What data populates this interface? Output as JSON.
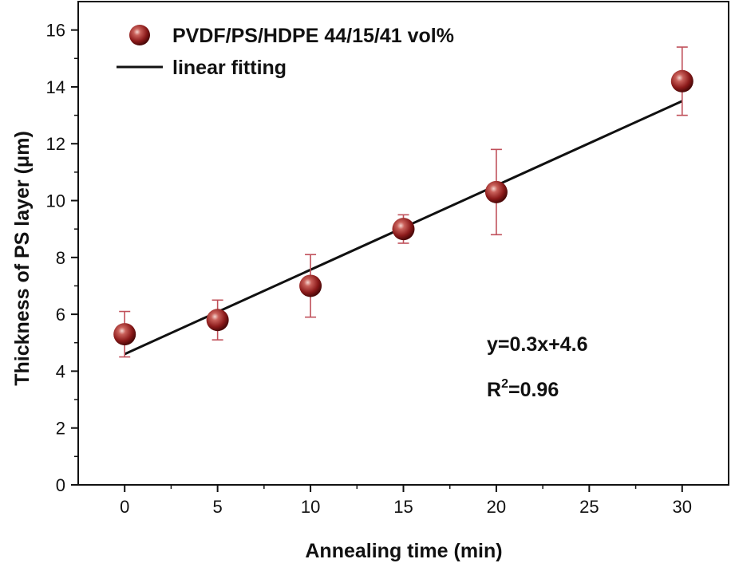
{
  "chart_data": {
    "type": "scatter",
    "xlabel": "Annealing time (min)",
    "ylabel": "Thickness of PS layer (μm)",
    "xlim": [
      -2.5,
      32.5
    ],
    "ylim": [
      0,
      17
    ],
    "x_ticks": [
      0,
      5,
      10,
      15,
      20,
      25,
      30
    ],
    "y_ticks": [
      0,
      2,
      4,
      6,
      8,
      10,
      12,
      14,
      16
    ],
    "grid": false,
    "legend_position": "top-left",
    "series": [
      {
        "name": "PVDF/PS/HDPE 44/15/41 vol%",
        "kind": "scatter-with-error",
        "color": "#8b1a1a",
        "error_color": "#c0505a",
        "x": [
          0,
          5,
          10,
          15,
          20,
          30
        ],
        "y": [
          5.3,
          5.8,
          7.0,
          9.0,
          10.3,
          14.2
        ],
        "y_err_low": [
          4.5,
          5.1,
          5.9,
          8.5,
          8.8,
          13.0
        ],
        "y_err_high": [
          6.1,
          6.5,
          8.1,
          9.5,
          11.8,
          15.4
        ]
      },
      {
        "name": "linear fitting",
        "kind": "line",
        "color": "#111111",
        "x": [
          0,
          30
        ],
        "y": [
          4.6,
          13.5
        ]
      }
    ],
    "annotations": {
      "equation": "y=0.3x+4.6",
      "r2_base": "R",
      "r2_sup": "2",
      "r2_value": "=0.96"
    }
  }
}
